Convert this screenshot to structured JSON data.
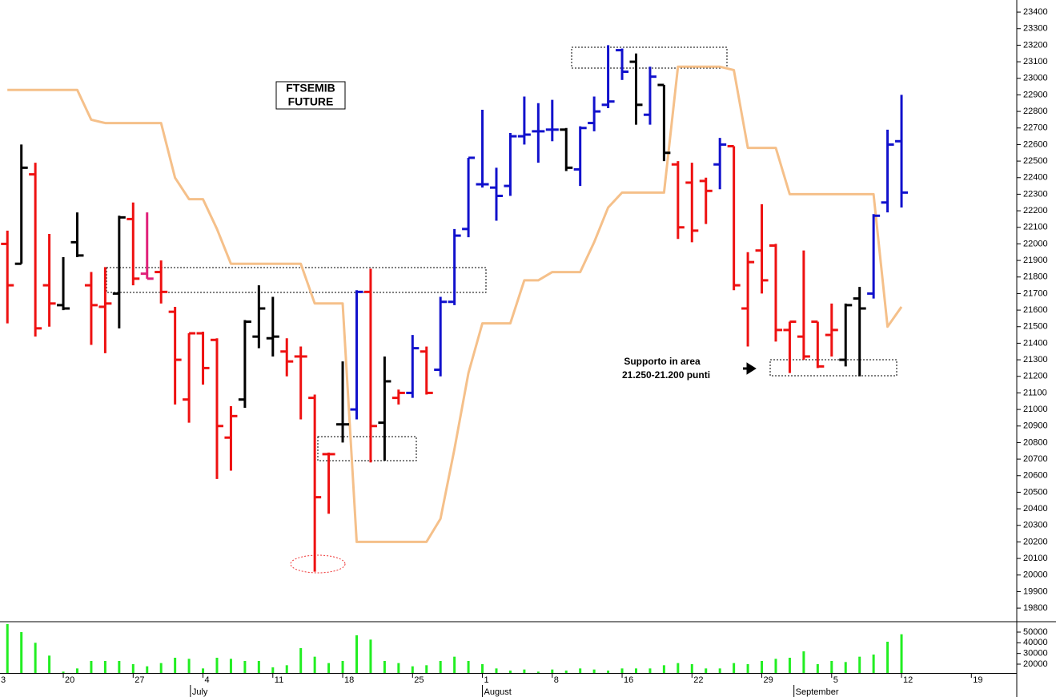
{
  "chart_data": [
    {
      "type": "ohlc",
      "title": [
        "FTSEMIB",
        "FUTURE"
      ],
      "annotations": [
        "Supporto in area",
        "21.250-21.200 punti"
      ],
      "x": [
        -4,
        -3,
        -2,
        -1,
        0,
        1,
        2,
        3,
        4,
        5,
        6,
        7,
        8,
        9,
        10,
        11,
        12,
        13,
        14,
        15,
        16,
        17,
        18,
        19,
        20,
        21,
        22,
        23,
        24,
        25,
        26,
        27,
        28,
        29,
        30,
        31,
        32,
        33,
        34,
        35,
        36,
        37,
        38,
        39,
        40,
        41,
        42,
        43,
        44,
        45,
        46,
        47,
        48,
        49,
        50,
        51,
        52,
        53,
        54,
        55,
        56,
        57,
        58,
        59,
        60
      ],
      "open": [
        22000,
        21880,
        22420,
        21750,
        21630,
        22010,
        21750,
        21620,
        21700,
        22150,
        21820,
        21830,
        21590,
        21060,
        21460,
        21420,
        20830,
        21060,
        21440,
        21430,
        21350,
        21320,
        21070,
        20730,
        20910,
        21000,
        21710,
        20920,
        21070,
        21100,
        21350,
        21240,
        21650,
        22090,
        22360,
        22340,
        22350,
        22650,
        22680,
        22690,
        22690,
        22450,
        22730,
        22840,
        23170,
        23100,
        22780,
        22960,
        22480,
        22370,
        22380,
        22480,
        22590,
        21610,
        21960,
        21990,
        21480,
        21440,
        21530,
        21450,
        21300,
        21670,
        21700,
        22250,
        22620
      ],
      "high": [
        22080,
        22600,
        22490,
        22060,
        21920,
        22190,
        21830,
        21860,
        22170,
        22250,
        22190,
        21900,
        21620,
        21460,
        21470,
        21430,
        21020,
        21540,
        21750,
        21680,
        21430,
        21380,
        21090,
        20740,
        21290,
        21720,
        21850,
        21320,
        21120,
        21450,
        21380,
        21680,
        22090,
        22520,
        22810,
        22460,
        22670,
        22890,
        22850,
        22870,
        22700,
        22710,
        22890,
        23200,
        23180,
        23150,
        23070,
        22960,
        22500,
        22490,
        22400,
        22640,
        22590,
        21950,
        22240,
        22000,
        21530,
        21960,
        21530,
        21640,
        21640,
        21740,
        22180,
        22690,
        22900
      ],
      "low": [
        21520,
        21880,
        21440,
        21500,
        21600,
        21920,
        21390,
        21340,
        21490,
        21750,
        21790,
        21640,
        21030,
        20920,
        21150,
        20580,
        20630,
        21010,
        21370,
        21320,
        21200,
        20940,
        20020,
        20370,
        20800,
        20940,
        20680,
        20690,
        21030,
        21070,
        21090,
        21200,
        21630,
        22040,
        22340,
        22140,
        22290,
        22600,
        22490,
        22620,
        22440,
        22350,
        22680,
        22820,
        22990,
        22720,
        22720,
        22500,
        22030,
        22010,
        22120,
        22330,
        21720,
        21380,
        21700,
        21410,
        21220,
        21300,
        21250,
        21320,
        21260,
        21200,
        21670,
        22190,
        22220
      ],
      "close": [
        21750,
        22460,
        21490,
        21640,
        21610,
        21930,
        21630,
        21640,
        22160,
        21790,
        21790,
        21710,
        21300,
        21460,
        21250,
        20900,
        20960,
        21530,
        21610,
        21440,
        21290,
        21320,
        20470,
        20730,
        20910,
        21710,
        20900,
        21170,
        21100,
        21370,
        21100,
        21650,
        22050,
        22520,
        22360,
        22290,
        22650,
        22660,
        22680,
        22690,
        22460,
        22700,
        22800,
        22860,
        23040,
        22840,
        23010,
        22550,
        22100,
        22080,
        22320,
        22600,
        21750,
        21890,
        21780,
        21480,
        21530,
        21320,
        21260,
        21480,
        21630,
        21610,
        22170,
        22600,
        22310
      ],
      "colors": [
        "#ee1111",
        "#000000",
        "#ee1111",
        "#ee1111",
        "#000000",
        "#000000",
        "#ee1111",
        "#ee1111",
        "#000000",
        "#ee1111",
        "#e0207a",
        "#ee1111",
        "#ee1111",
        "#ee1111",
        "#ee1111",
        "#ee1111",
        "#ee1111",
        "#000000",
        "#000000",
        "#000000",
        "#ee1111",
        "#ee1111",
        "#ee1111",
        "#ee1111",
        "#000000",
        "#1111cc",
        "#ee1111",
        "#000000",
        "#ee1111",
        "#1111cc",
        "#ee1111",
        "#1111cc",
        "#1111cc",
        "#1111cc",
        "#1111cc",
        "#1111cc",
        "#1111cc",
        "#1111cc",
        "#1111cc",
        "#1111cc",
        "#000000",
        "#1111cc",
        "#1111cc",
        "#1111cc",
        "#1111cc",
        "#000000",
        "#1111cc",
        "#000000",
        "#ee1111",
        "#ee1111",
        "#ee1111",
        "#1111cc",
        "#ee1111",
        "#ee1111",
        "#ee1111",
        "#ee1111",
        "#ee1111",
        "#ee1111",
        "#ee1111",
        "#ee1111",
        "#000000",
        "#000000",
        "#1111cc",
        "#1111cc",
        "#1111cc"
      ],
      "line": {
        "color": "#f5c08a",
        "values": [
          22930,
          22930,
          22930,
          22930,
          22930,
          22930,
          22750,
          22730,
          22730,
          22730,
          22730,
          22730,
          22400,
          22270,
          22270,
          22090,
          21880,
          21880,
          21880,
          21880,
          21880,
          21880,
          21640,
          21640,
          21640,
          20200,
          20200,
          20200,
          20200,
          20200,
          20200,
          20340,
          20760,
          21220,
          21520,
          21520,
          21520,
          21780,
          21780,
          21830,
          21830,
          21830,
          22010,
          22220,
          22310,
          22310,
          22310,
          22310,
          23070,
          23070,
          23070,
          23070,
          23050,
          22580,
          22580,
          22580,
          22300,
          22300,
          22300,
          22300,
          22300,
          22300,
          22300,
          21500,
          21620
        ]
      },
      "xlim": [
        -4.53,
        68.25
      ],
      "ylim": [
        19723,
        23473
      ],
      "yticks": [
        19800,
        19900,
        20000,
        20100,
        20200,
        20300,
        20400,
        20500,
        20600,
        20700,
        20800,
        20900,
        21000,
        21100,
        21200,
        21300,
        21400,
        21500,
        21600,
        21700,
        21800,
        21900,
        22000,
        22100,
        22200,
        22300,
        22400,
        22500,
        22600,
        22700,
        22800,
        22900,
        23000,
        23100,
        23200,
        23300,
        23400
      ]
    },
    {
      "type": "bar",
      "x": [
        -4,
        -3,
        -2,
        -1,
        0,
        1,
        2,
        3,
        4,
        5,
        6,
        7,
        8,
        9,
        10,
        11,
        12,
        13,
        14,
        15,
        16,
        17,
        18,
        19,
        20,
        21,
        22,
        23,
        24,
        25,
        26,
        27,
        28,
        29,
        30,
        31,
        32,
        33,
        34,
        35,
        36,
        37,
        38,
        39,
        40,
        41,
        42,
        43,
        44,
        45,
        46,
        47,
        48,
        49,
        50,
        51,
        52,
        53,
        54,
        55,
        56,
        57,
        58,
        59,
        60
      ],
      "values": [
        57500,
        50000,
        40000,
        28000,
        13000,
        16000,
        23000,
        23000,
        23000,
        20000,
        18000,
        21000,
        26000,
        25000,
        16000,
        26000,
        25000,
        23000,
        23000,
        17000,
        19000,
        35000,
        27000,
        21000,
        23000,
        47000,
        43000,
        23000,
        21000,
        18000,
        19000,
        23000,
        27000,
        23000,
        20000,
        16000,
        14000,
        15000,
        13000,
        15000,
        14000,
        16000,
        15000,
        14000,
        16000,
        16000,
        16000,
        19000,
        21000,
        20000,
        16000,
        16000,
        21000,
        20000,
        23000,
        25000,
        26000,
        32000,
        20000,
        23000,
        22000,
        27000,
        29000,
        41000,
        48000
      ],
      "color": "#22ee22",
      "xlim": [
        -4.53,
        68.25
      ],
      "ylim": [
        11750,
        59000
      ],
      "yticks": [
        20000,
        30000,
        40000,
        50000
      ],
      "xticks": [
        {
          "value": -5,
          "label": "3"
        },
        {
          "value": 0,
          "label": "20"
        },
        {
          "value": 5,
          "label": "27"
        },
        {
          "value": 10,
          "label": "4"
        },
        {
          "value": 15,
          "label": "11"
        },
        {
          "value": 20,
          "label": "18"
        },
        {
          "value": 25,
          "label": "25"
        },
        {
          "value": 30,
          "label": "1"
        },
        {
          "value": 35,
          "label": "8"
        },
        {
          "value": 40,
          "label": "16"
        },
        {
          "value": 45,
          "label": "22"
        },
        {
          "value": 50,
          "label": "29"
        },
        {
          "value": 55,
          "label": "5"
        },
        {
          "value": 60,
          "label": "12"
        },
        {
          "value": 65,
          "label": "19"
        }
      ],
      "months": [
        {
          "value": 9.1,
          "label": "July"
        },
        {
          "value": 30,
          "label": "August"
        },
        {
          "value": 52.3,
          "label": "September"
        }
      ]
    }
  ]
}
